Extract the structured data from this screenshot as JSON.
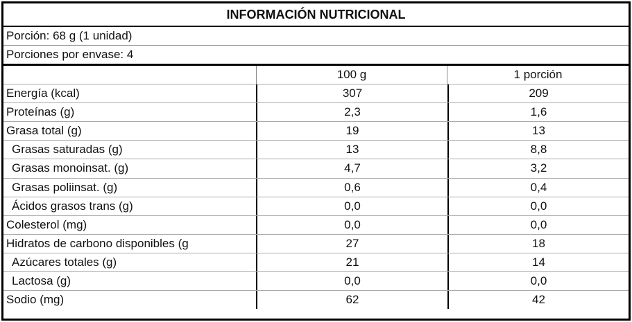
{
  "header": {
    "title": "INFORMACIÓN NUTRICIONAL"
  },
  "serving": {
    "lines": [
      "Porción: 68 g (1 unidad)",
      "Porciones por envase: 4"
    ]
  },
  "table": {
    "columns": [
      "100 g",
      "1 porción"
    ],
    "rows": [
      [
        "Energía (kcal)",
        "307",
        "209"
      ],
      [
        "Proteínas (g)",
        "2,3",
        "1,6"
      ],
      [
        "Grasa total (g)",
        "19",
        "13"
      ],
      [
        "Grasas saturadas (g)",
        "13",
        "8,8"
      ],
      [
        "Grasas monoinsat. (g)",
        "4,7",
        "3,2"
      ],
      [
        "Grasas poliinsat. (g)",
        "0,6",
        "0,4"
      ],
      [
        "Ácidos grasos trans (g)",
        "0,0",
        "0,0"
      ],
      [
        "Colesterol (mg)",
        "0,0",
        "0,0"
      ],
      [
        "Hidratos de carbono disponibles (g",
        "27",
        "18"
      ],
      [
        "Azúcares totales (g)",
        "21",
        "14"
      ],
      [
        "Lactosa (g)",
        "0,0",
        "0,0"
      ],
      [
        "Sodio (mg)",
        "62",
        "42"
      ]
    ]
  }
}
